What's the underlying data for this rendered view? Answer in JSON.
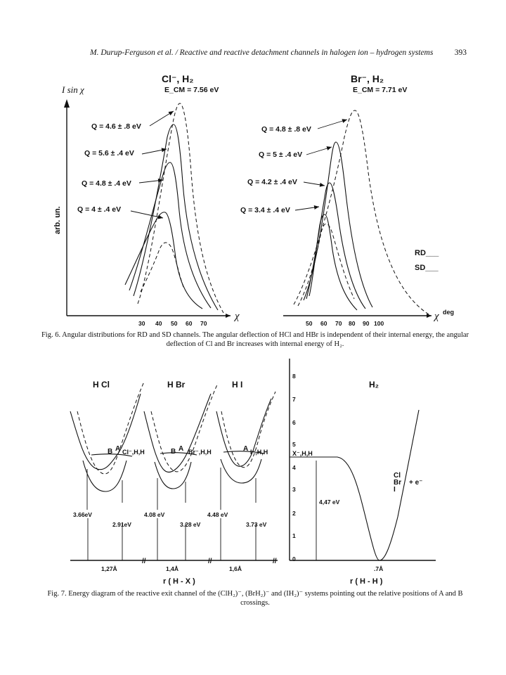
{
  "header": {
    "running_head": "M. Durup-Ferguson et al. / Reactive and reactive detachment channels in halogen ion – hydrogen systems",
    "page_number": "393"
  },
  "fig6": {
    "y_axis_top": "I sin χ",
    "y_axis_side": "arb. un.",
    "left_title": "Cl⁻, H₂",
    "left_ecm": "E_CM = 7.56 eV",
    "right_title": "Br⁻, H₂",
    "right_ecm": "E_CM = 7.71 eV",
    "left_q": [
      "Q = 4.6 ± .8 eV",
      "Q = 5.6 ± .4 eV",
      "Q = 4.8 ± .4 eV",
      "Q = 4 ± .4 eV"
    ],
    "right_q": [
      "Q = 4.8 ± .8 eV",
      "Q = 5 ± .4 eV",
      "Q = 4.2 ± .4 eV",
      "Q = 3.4 ± .4 eV"
    ],
    "left_ticks": [
      "30",
      "40",
      "50",
      "60",
      "70"
    ],
    "right_ticks": [
      "50",
      "60",
      "70",
      "80",
      "90",
      "100"
    ],
    "x_axis_left": "χ",
    "x_axis_right": "χ",
    "x_unit_right": "deg",
    "legend_rd": "RD___",
    "legend_sd": "SD___",
    "caption_label": "Fig. 6.",
    "caption": "Angular distributions for RD and SD channels. The angular deflection of HCl and HBr is independent of their internal energy, the angular deflection of Cl and Br increases with internal energy of H₂."
  },
  "fig7": {
    "molecules": [
      "H Cl",
      "H Br",
      "H I",
      "H₂"
    ],
    "crossing_labels": {
      "b1": "B",
      "a1": "A",
      "s1": "Cl⁻,H,H",
      "b2": "B",
      "a2": "A",
      "s2": "Br⁻,H,H",
      "a3": "A",
      "s3": "I⁻,H,H",
      "s4": "X⁻,H,H"
    },
    "energies": [
      "3.66eV",
      "2.91eV",
      "4.08 eV",
      "3.28 eV",
      "4.48 eV",
      "3.73 eV",
      "4,47 eV"
    ],
    "distances": [
      "1,27Å",
      "1,4Å",
      "1,6Å",
      ".7Å"
    ],
    "x_label_left": "r ( H - X )",
    "x_label_right": "r ( H - H )",
    "y_ticks": [
      "8",
      "7",
      "6",
      "5",
      "4",
      "3",
      "2",
      "1",
      "0"
    ],
    "halogens": [
      "Cl",
      "Br",
      "I"
    ],
    "electron": "+ e⁻",
    "caption_label": "Fig. 7.",
    "caption": "Energy diagram of the reactive exit channel of the (ClH₂)⁻, (BrH₂)⁻ and (IH₂)⁻ systems pointing out the relative positions of A and B crossings."
  }
}
